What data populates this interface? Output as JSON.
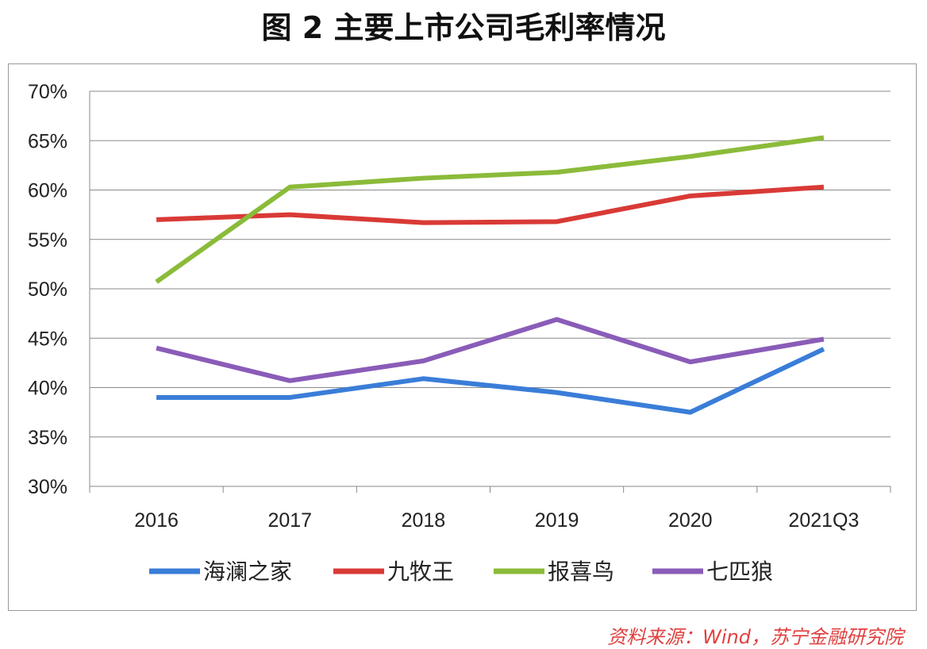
{
  "title": "图 2  主要上市公司毛利率情况",
  "source": "资料来源：Wind，苏宁金融研究院",
  "chart_data": {
    "type": "line",
    "title": "图 2  主要上市公司毛利率情况",
    "categories": [
      "2016",
      "2017",
      "2018",
      "2019",
      "2020",
      "2021Q3"
    ],
    "ylim": [
      30,
      70
    ],
    "yticks": [
      "30%",
      "35%",
      "40%",
      "45%",
      "50%",
      "55%",
      "60%",
      "65%",
      "70%"
    ],
    "grid": true,
    "legend": "bottom",
    "series": [
      {
        "name": "海澜之家",
        "color": "#3a7dd8",
        "values": [
          39.0,
          39.0,
          40.9,
          39.5,
          37.5,
          43.9
        ]
      },
      {
        "name": "九牧王",
        "color": "#d93a36",
        "values": [
          57.0,
          57.5,
          56.7,
          56.8,
          59.4,
          60.3
        ]
      },
      {
        "name": "报喜鸟",
        "color": "#8bbb3a",
        "values": [
          50.7,
          60.3,
          61.2,
          61.8,
          63.4,
          65.3
        ]
      },
      {
        "name": "七匹狼",
        "color": "#8a5cb8",
        "values": [
          44.0,
          40.7,
          42.7,
          46.9,
          42.6,
          44.9
        ]
      }
    ]
  }
}
